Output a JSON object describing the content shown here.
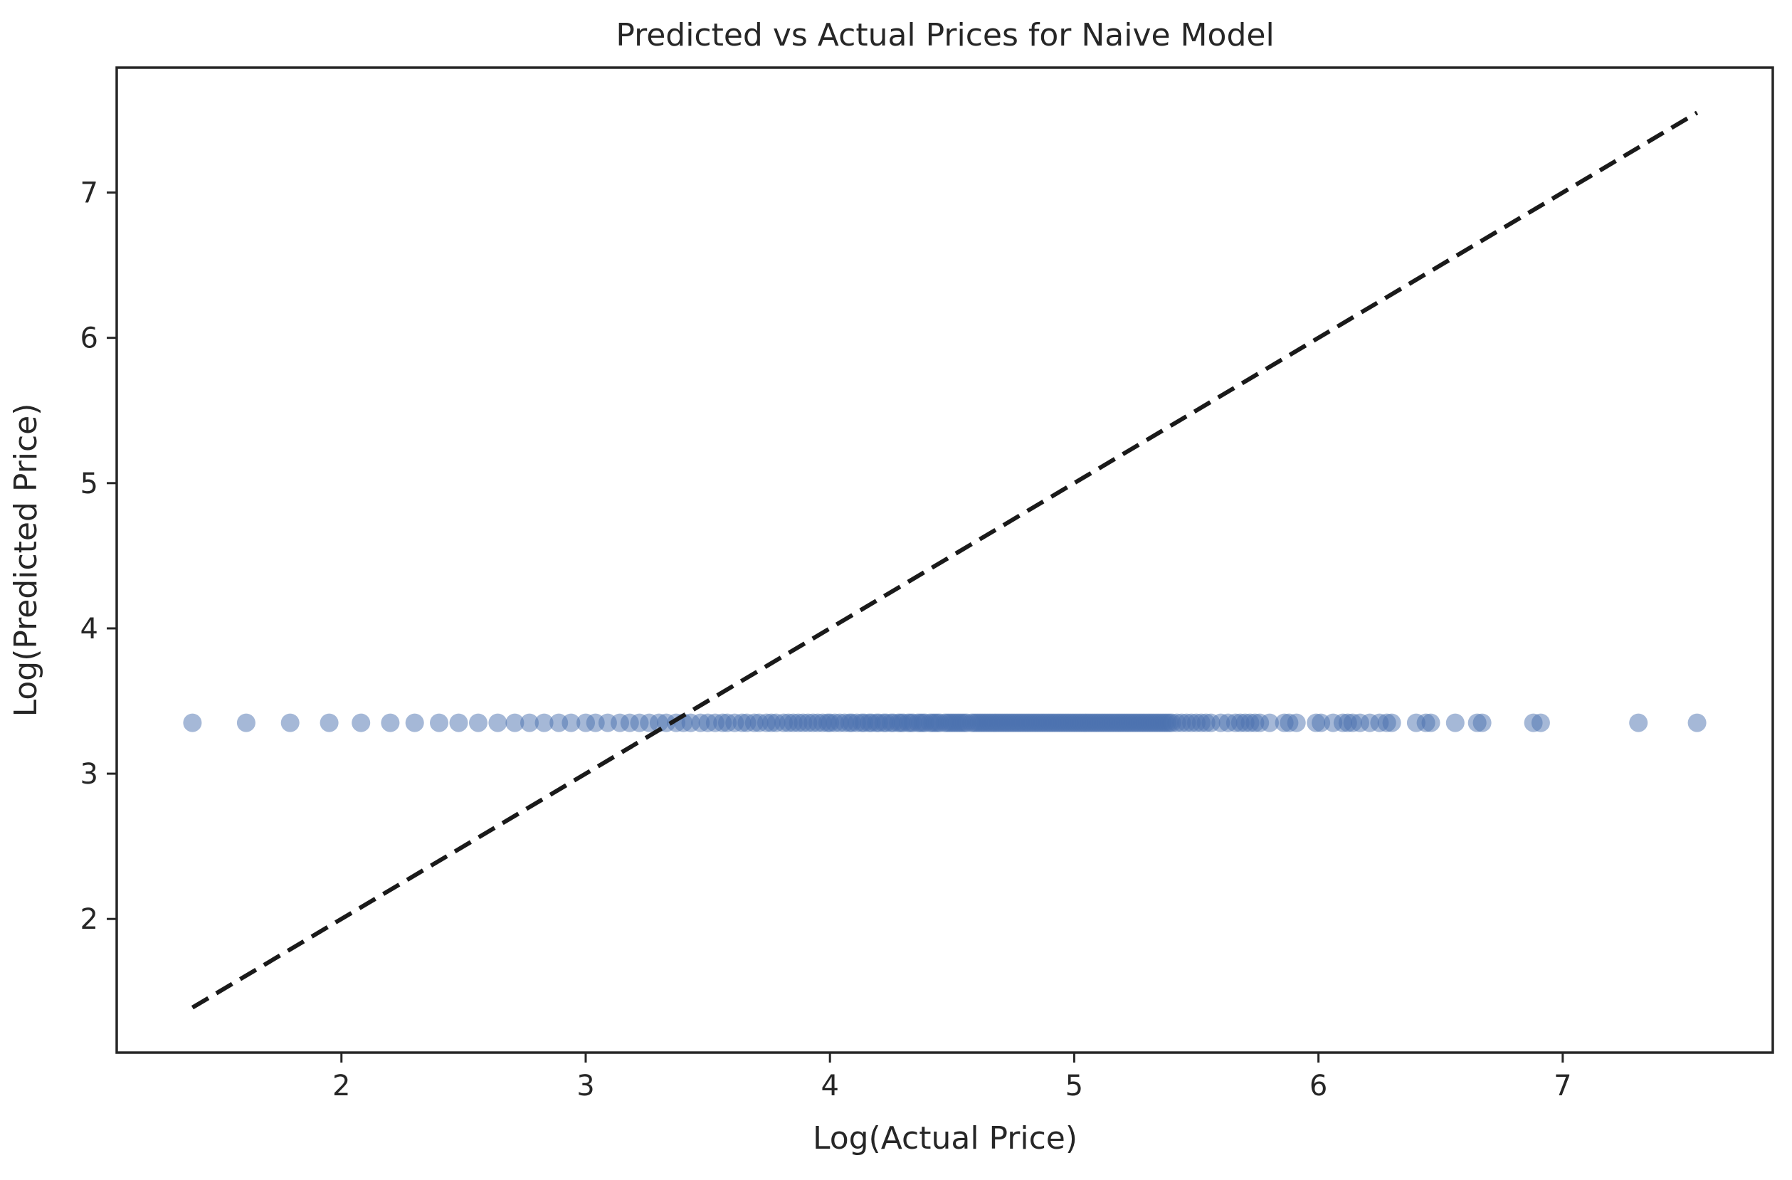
{
  "chart_data": {
    "type": "scatter",
    "title": "Predicted vs Actual Prices for Naive Model",
    "xlabel": "Log(Actual Price)",
    "ylabel": "Log(Predicted Price)",
    "xlim": [
      1.08,
      7.86
    ],
    "ylim": [
      1.08,
      7.86
    ],
    "x_ticks": [
      2,
      3,
      4,
      5,
      6,
      7
    ],
    "y_ticks": [
      2,
      3,
      4,
      5,
      6,
      7
    ],
    "x_tick_labels": [
      "2",
      "3",
      "4",
      "5",
      "6",
      "7"
    ],
    "y_tick_labels": [
      "2",
      "3",
      "4",
      "5",
      "6",
      "7"
    ],
    "grid": false,
    "legend": "none",
    "point_color": "#4c72b0",
    "point_opacity": 0.5,
    "reference_line": {
      "style": "dashed",
      "color": "#1a1a1a",
      "x": [
        1.39,
        7.55
      ],
      "y": [
        1.39,
        7.55
      ]
    },
    "series": [
      {
        "values_y": 3.35,
        "x": [
          1.39,
          1.61,
          1.79,
          1.95,
          2.08,
          2.2,
          2.3,
          2.4,
          2.48,
          2.56,
          2.64,
          2.71,
          2.77,
          2.83,
          2.89,
          2.94,
          3.0,
          3.04,
          3.09,
          3.14,
          3.18,
          3.22,
          3.26,
          3.3,
          3.33,
          3.37,
          3.4,
          3.43,
          3.47,
          3.5,
          3.53,
          3.56,
          3.58,
          3.61,
          3.64,
          3.66,
          3.69,
          3.71,
          3.74,
          3.76,
          3.78,
          3.81,
          3.83,
          3.85,
          3.87,
          3.89,
          3.91,
          3.93,
          3.95,
          3.97,
          3.99,
          4.0,
          4.02,
          4.04,
          4.06,
          4.08,
          4.09,
          4.11,
          4.13,
          4.14,
          4.16,
          4.17,
          4.19,
          4.2,
          4.22,
          4.23,
          4.25,
          4.26,
          4.28,
          4.29,
          4.3,
          4.32,
          4.33,
          4.34,
          4.36,
          4.37,
          4.38,
          4.39,
          4.41,
          4.42,
          4.43,
          4.44,
          4.45,
          4.47,
          4.48,
          4.49,
          4.5,
          4.51,
          4.52,
          4.53,
          4.54,
          4.55,
          4.56,
          4.58,
          4.59,
          4.6,
          4.61,
          4.62,
          4.63,
          4.64,
          4.65,
          4.66,
          4.67,
          4.68,
          4.69,
          4.7,
          4.71,
          4.72,
          4.73,
          4.74,
          4.75,
          4.76,
          4.77,
          4.78,
          4.79,
          4.8,
          4.81,
          4.82,
          4.83,
          4.84,
          4.85,
          4.86,
          4.87,
          4.88,
          4.89,
          4.9,
          4.91,
          4.92,
          4.93,
          4.94,
          4.95,
          4.96,
          4.97,
          4.98,
          4.99,
          5.0,
          5.01,
          5.02,
          5.03,
          5.04,
          5.05,
          5.06,
          5.07,
          5.08,
          5.09,
          5.1,
          5.11,
          5.12,
          5.13,
          5.14,
          5.15,
          5.16,
          5.17,
          5.18,
          5.19,
          5.2,
          5.21,
          5.22,
          5.23,
          5.24,
          5.25,
          5.26,
          5.27,
          5.28,
          5.29,
          5.3,
          5.31,
          5.32,
          5.33,
          5.34,
          5.35,
          5.36,
          5.37,
          5.38,
          5.39,
          5.4,
          5.42,
          5.44,
          5.46,
          5.48,
          5.5,
          5.52,
          5.54,
          5.56,
          5.6,
          5.63,
          5.66,
          5.68,
          5.7,
          5.72,
          5.74,
          5.76,
          5.8,
          5.86,
          5.88,
          5.91,
          5.99,
          6.01,
          6.06,
          6.1,
          6.12,
          6.14,
          6.17,
          6.21,
          6.25,
          6.28,
          6.3,
          6.4,
          6.44,
          6.46,
          6.56,
          6.65,
          6.67,
          6.88,
          6.91,
          7.31,
          7.55
        ]
      }
    ]
  }
}
